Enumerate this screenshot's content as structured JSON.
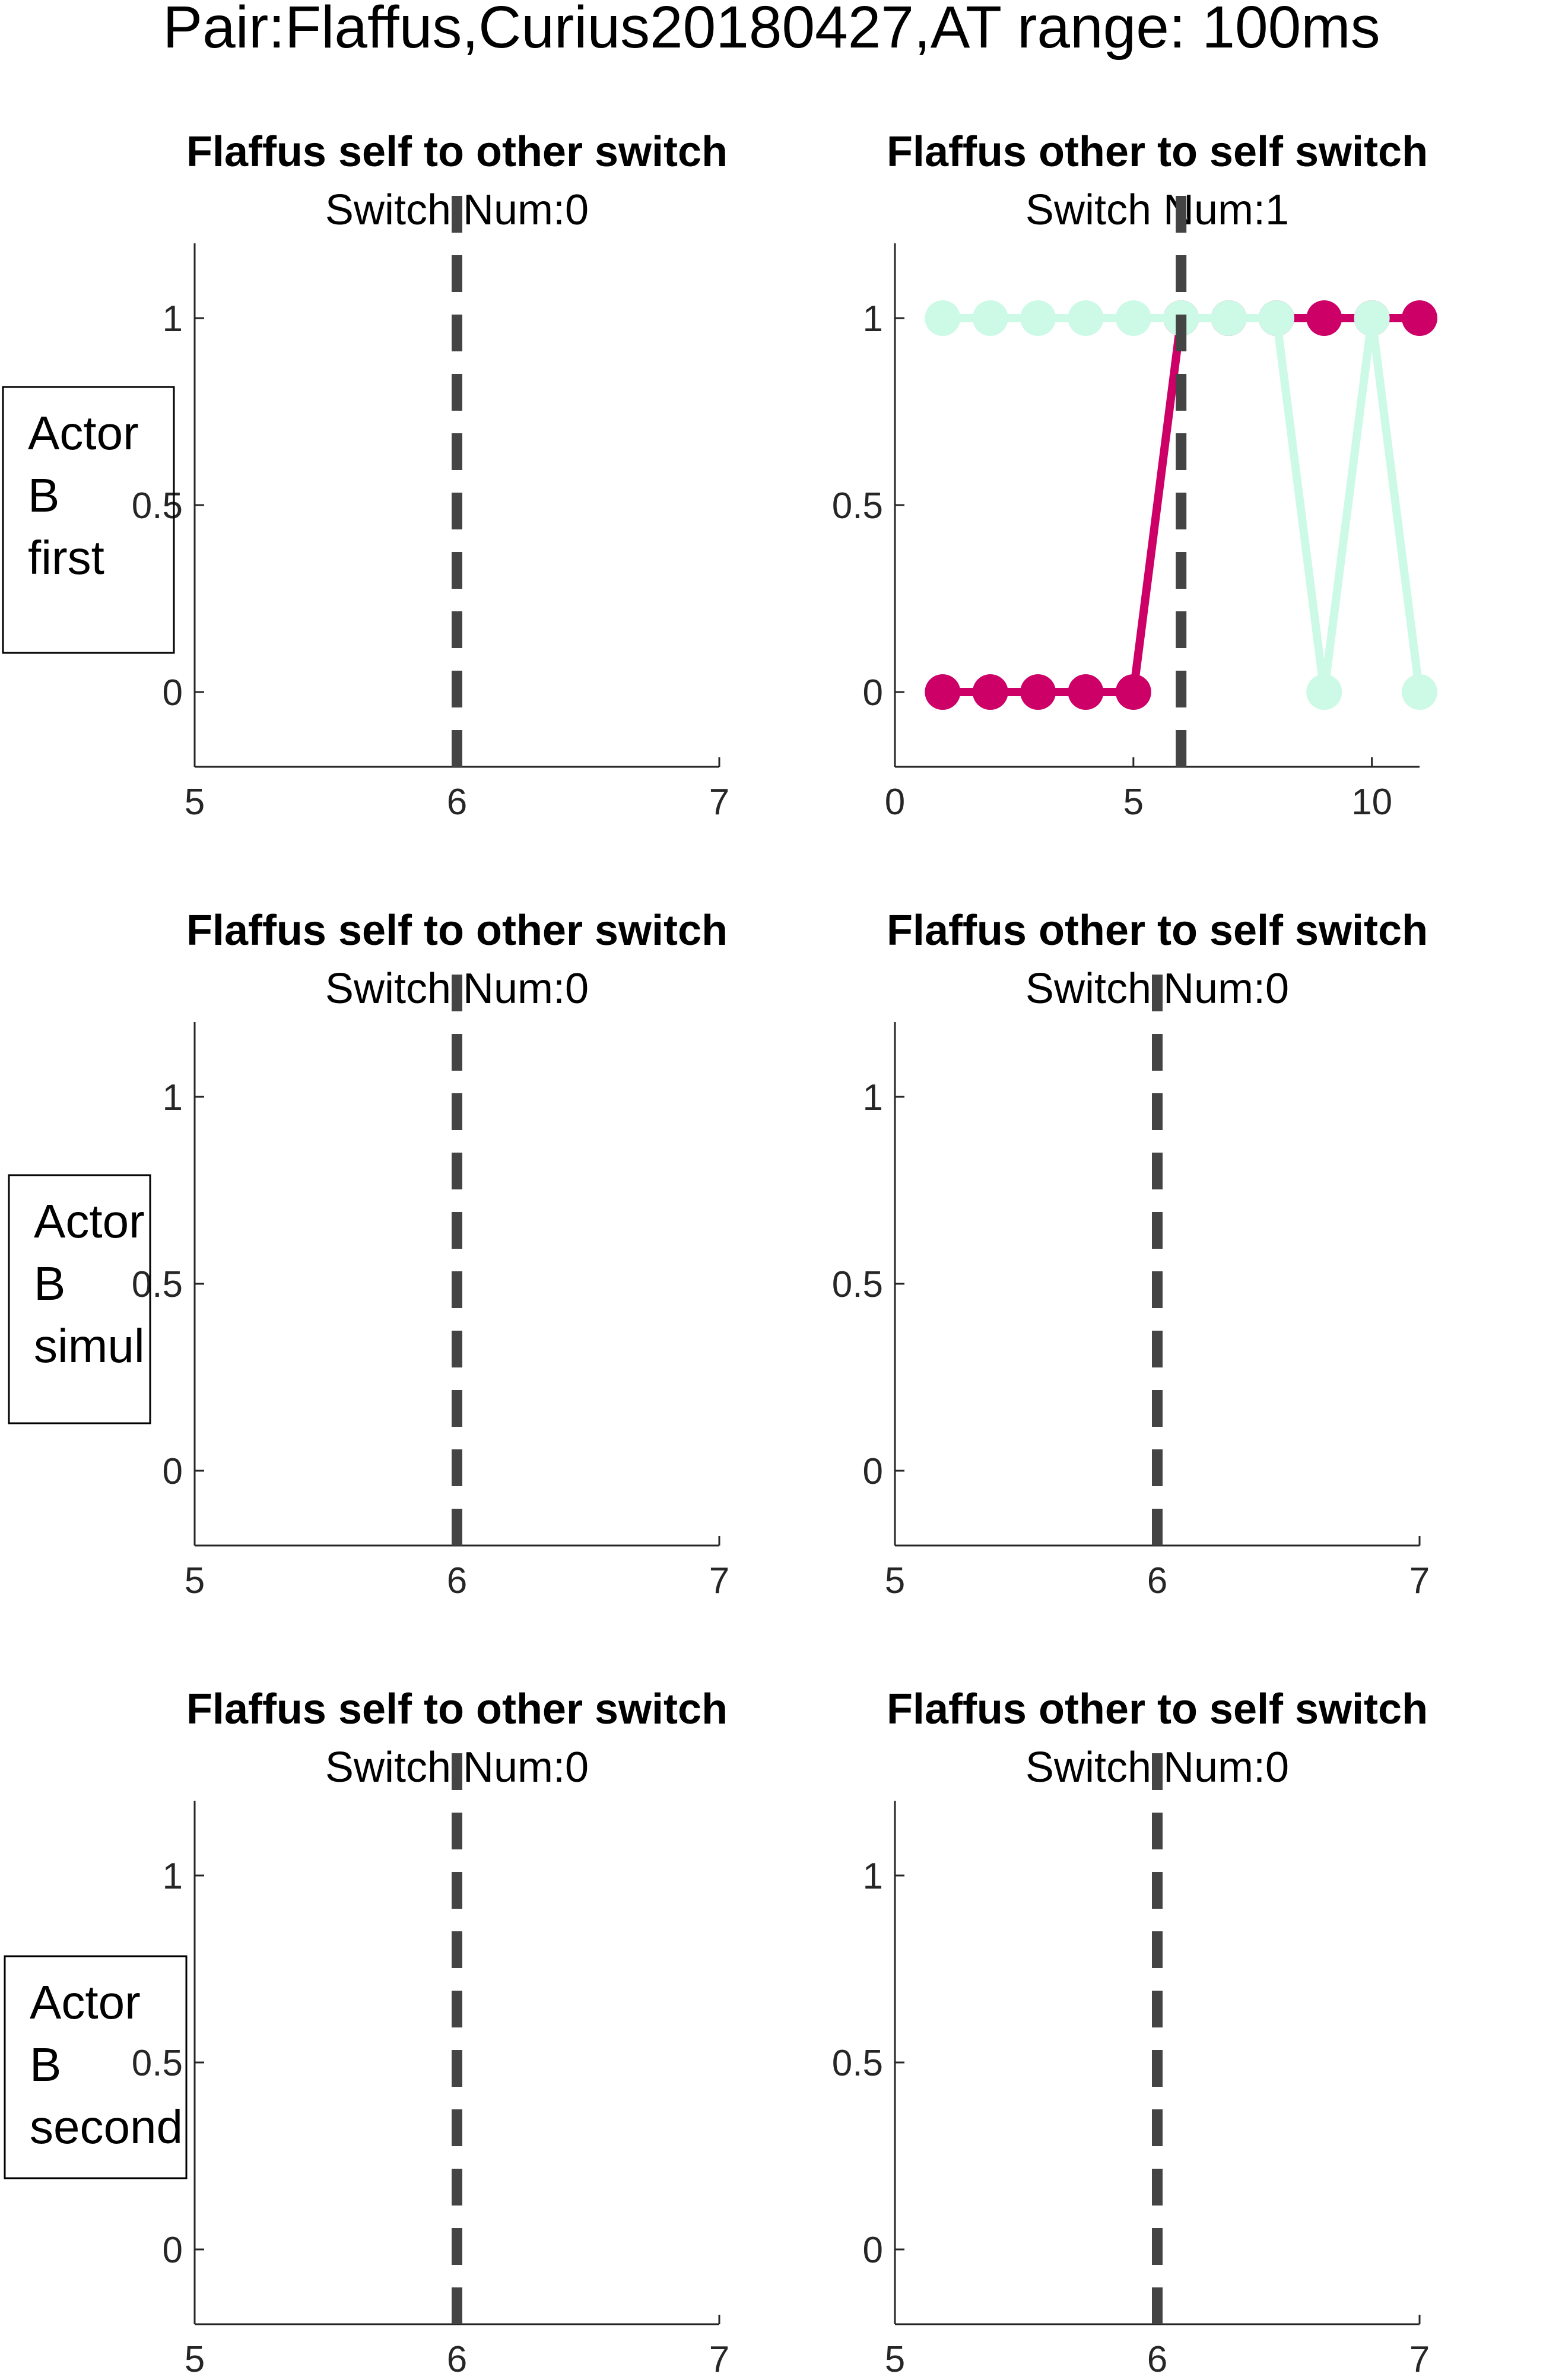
{
  "figure": {
    "title": "Pair:Flaffus,Curius20180427,AT range: 100ms",
    "colors": {
      "axis": "#262626",
      "dashed_line": "#444444",
      "series_magenta": "#CC0066",
      "series_mint": "#CCFAE6"
    }
  },
  "row_labels": [
    {
      "lines": [
        "Actor",
        "B",
        "first"
      ]
    },
    {
      "lines": [
        "Actor",
        "B",
        "simul"
      ]
    },
    {
      "lines": [
        "Actor",
        "B",
        "second"
      ]
    }
  ],
  "chart_data": [
    {
      "type": "line",
      "title": "Flaffus self to other switch",
      "subtitle": "Switch Num:0",
      "xlim": [
        5,
        7
      ],
      "ylim": [
        -0.2,
        1.2
      ],
      "xticks": [
        5,
        6,
        7
      ],
      "xtick_labels": [
        "5",
        "6",
        "7"
      ],
      "yticks": [
        0,
        0.5,
        1
      ],
      "ytick_labels": [
        "0",
        "0.5",
        "1"
      ],
      "vline_x": 6,
      "series": []
    },
    {
      "type": "line",
      "title": "Flaffus other to self switch",
      "subtitle": "Switch Num:1",
      "xlim": [
        0,
        11
      ],
      "ylim": [
        -0.2,
        1.2
      ],
      "xticks": [
        0,
        5,
        10
      ],
      "xtick_labels": [
        "0",
        "5",
        "10"
      ],
      "yticks": [
        0,
        0.5,
        1
      ],
      "ytick_labels": [
        "0",
        "0.5",
        "1"
      ],
      "vline_x": 6,
      "series": [
        {
          "color": "#CC0066",
          "x": [
            1,
            2,
            3,
            4,
            5,
            6,
            7,
            8,
            9,
            10,
            11
          ],
          "y": [
            0,
            0,
            0,
            0,
            0,
            1,
            1,
            1,
            1,
            1,
            1
          ]
        },
        {
          "color": "#CCFAE6",
          "x": [
            1,
            2,
            3,
            4,
            5,
            6,
            7,
            8,
            9,
            10,
            11
          ],
          "y": [
            1,
            1,
            1,
            1,
            1,
            1,
            1,
            1,
            0,
            1,
            0
          ]
        }
      ]
    },
    {
      "type": "line",
      "title": "Flaffus self to other switch",
      "subtitle": "Switch Num:0",
      "xlim": [
        5,
        7
      ],
      "ylim": [
        -0.2,
        1.2
      ],
      "xticks": [
        5,
        6,
        7
      ],
      "xtick_labels": [
        "5",
        "6",
        "7"
      ],
      "yticks": [
        0,
        0.5,
        1
      ],
      "ytick_labels": [
        "0",
        "0.5",
        "1"
      ],
      "vline_x": 6,
      "series": []
    },
    {
      "type": "line",
      "title": "Flaffus other to self switch",
      "subtitle": "Switch Num:0",
      "xlim": [
        5,
        7
      ],
      "ylim": [
        -0.2,
        1.2
      ],
      "xticks": [
        5,
        6,
        7
      ],
      "xtick_labels": [
        "5",
        "6",
        "7"
      ],
      "yticks": [
        0,
        0.5,
        1
      ],
      "ytick_labels": [
        "0",
        "0.5",
        "1"
      ],
      "vline_x": 6,
      "series": []
    },
    {
      "type": "line",
      "title": "Flaffus self to other switch",
      "subtitle": "Switch Num:0",
      "xlim": [
        5,
        7
      ],
      "ylim": [
        -0.2,
        1.2
      ],
      "xticks": [
        5,
        6,
        7
      ],
      "xtick_labels": [
        "5",
        "6",
        "7"
      ],
      "yticks": [
        0,
        0.5,
        1
      ],
      "ytick_labels": [
        "0",
        "0.5",
        "1"
      ],
      "vline_x": 6,
      "series": []
    },
    {
      "type": "line",
      "title": "Flaffus other to self switch",
      "subtitle": "Switch Num:0",
      "xlim": [
        5,
        7
      ],
      "ylim": [
        -0.2,
        1.2
      ],
      "xticks": [
        5,
        6,
        7
      ],
      "xtick_labels": [
        "5",
        "6",
        "7"
      ],
      "yticks": [
        0,
        0.5,
        1
      ],
      "ytick_labels": [
        "0",
        "0.5",
        "1"
      ],
      "vline_x": 6,
      "series": []
    }
  ]
}
